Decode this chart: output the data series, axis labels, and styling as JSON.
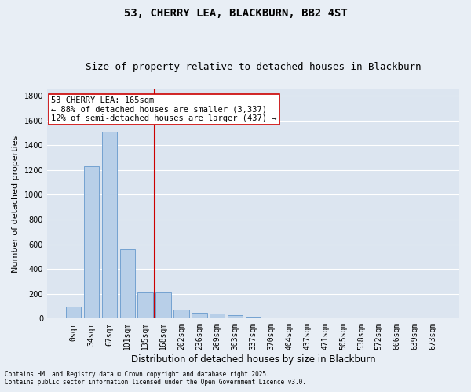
{
  "title": "53, CHERRY LEA, BLACKBURN, BB2 4ST",
  "subtitle": "Size of property relative to detached houses in Blackburn",
  "xlabel": "Distribution of detached houses by size in Blackburn",
  "ylabel": "Number of detached properties",
  "categories": [
    "0sqm",
    "34sqm",
    "67sqm",
    "101sqm",
    "135sqm",
    "168sqm",
    "202sqm",
    "236sqm",
    "269sqm",
    "303sqm",
    "337sqm",
    "370sqm",
    "404sqm",
    "437sqm",
    "471sqm",
    "505sqm",
    "538sqm",
    "572sqm",
    "606sqm",
    "639sqm",
    "673sqm"
  ],
  "values": [
    95,
    1230,
    1510,
    560,
    210,
    210,
    70,
    45,
    38,
    25,
    15,
    5,
    0,
    0,
    0,
    0,
    0,
    0,
    0,
    0,
    0
  ],
  "bar_color": "#b8cfe8",
  "bar_edge_color": "#6699cc",
  "vline_color": "#cc0000",
  "vline_x": 4.5,
  "annotation_title": "53 CHERRY LEA: 165sqm",
  "annotation_line1": "← 88% of detached houses are smaller (3,337)",
  "annotation_line2": "12% of semi-detached houses are larger (437) →",
  "annotation_box_facecolor": "white",
  "annotation_box_edgecolor": "#cc0000",
  "ylim": [
    0,
    1850
  ],
  "yticks": [
    0,
    200,
    400,
    600,
    800,
    1000,
    1200,
    1400,
    1600,
    1800
  ],
  "footnote1": "Contains HM Land Registry data © Crown copyright and database right 2025.",
  "footnote2": "Contains public sector information licensed under the Open Government Licence v3.0.",
  "bg_color": "#e8eef5",
  "plot_bg_color": "#dce5f0",
  "grid_color": "white",
  "title_fontsize": 10,
  "subtitle_fontsize": 9,
  "tick_fontsize": 7,
  "ylabel_fontsize": 8,
  "xlabel_fontsize": 8.5,
  "annotation_fontsize": 7.5,
  "footnote_fontsize": 5.5
}
